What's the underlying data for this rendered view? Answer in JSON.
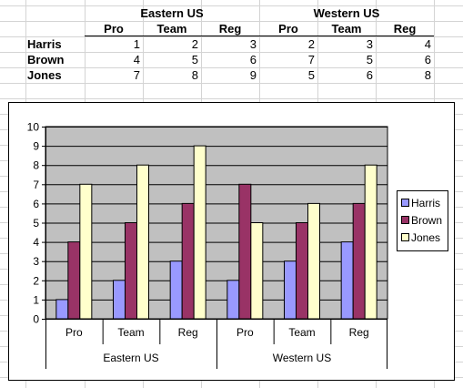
{
  "spreadsheet": {
    "group_headers": [
      "Eastern US",
      "Western US"
    ],
    "column_headers": [
      "Pro",
      "Team",
      "Reg",
      "Pro",
      "Team",
      "Reg"
    ],
    "rows": [
      {
        "name": "Harris",
        "values": [
          1,
          2,
          3,
          2,
          3,
          4
        ]
      },
      {
        "name": "Brown",
        "values": [
          4,
          5,
          6,
          7,
          5,
          6
        ]
      },
      {
        "name": "Jones",
        "values": [
          7,
          8,
          9,
          5,
          6,
          8
        ]
      }
    ]
  },
  "colors": {
    "harris": "#9999ff",
    "brown": "#993366",
    "jones": "#ffffcc",
    "plot_area": "#c0c0c0",
    "gridline": "#000000",
    "sheet_gridline": "#d4d4d4"
  },
  "chart_data": {
    "type": "bar",
    "title": "",
    "xlabel": "",
    "ylabel": "",
    "ylim": [
      0,
      10
    ],
    "yticks": [
      0,
      1,
      2,
      3,
      4,
      5,
      6,
      7,
      8,
      9,
      10
    ],
    "grid": true,
    "legend_position": "right",
    "groups": [
      {
        "label": "Eastern US",
        "categories": [
          "Pro",
          "Team",
          "Reg"
        ]
      },
      {
        "label": "Western US",
        "categories": [
          "Pro",
          "Team",
          "Reg"
        ]
      }
    ],
    "categories": [
      "Pro",
      "Team",
      "Reg",
      "Pro",
      "Team",
      "Reg"
    ],
    "series": [
      {
        "name": "Harris",
        "color": "#9999ff",
        "values": [
          1,
          2,
          3,
          2,
          3,
          4
        ]
      },
      {
        "name": "Brown",
        "color": "#993366",
        "values": [
          4,
          5,
          6,
          7,
          5,
          6
        ]
      },
      {
        "name": "Jones",
        "color": "#ffffcc",
        "values": [
          7,
          8,
          9,
          5,
          6,
          8
        ]
      }
    ]
  }
}
